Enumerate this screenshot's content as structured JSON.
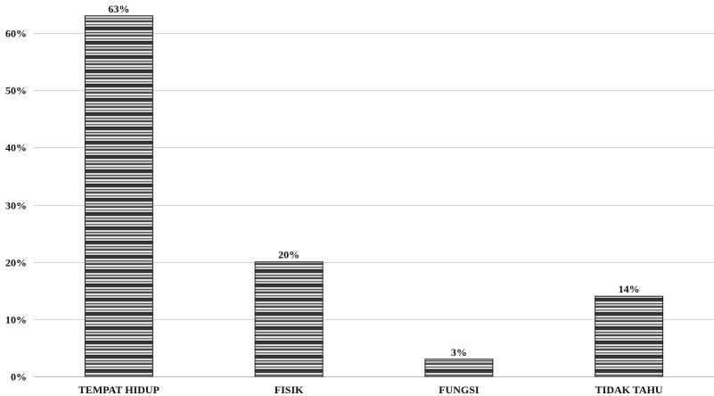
{
  "chart_data": {
    "type": "bar",
    "title": "",
    "xlabel": "",
    "ylabel": "",
    "categories": [
      "TEMPAT HIDUP",
      "FISIK",
      "FUNGSI",
      "TIDAK TAHU"
    ],
    "values": [
      63,
      20,
      3,
      14
    ],
    "data_labels": [
      "63%",
      "20%",
      "3%",
      "14%"
    ],
    "ylim": [
      0,
      60
    ],
    "yticks": [
      0,
      10,
      20,
      30,
      40,
      50,
      60
    ],
    "ytick_labels": [
      "0%",
      "10%",
      "20%",
      "30%",
      "40%",
      "50%",
      "60%"
    ],
    "grid": true,
    "legend": "none",
    "bar_fill": "striped gray (horizontal bands)",
    "colors": {
      "bar_dark": "#3a3a3a",
      "bar_light": "#d8d8d8",
      "grid": "#d4d4d4"
    }
  }
}
